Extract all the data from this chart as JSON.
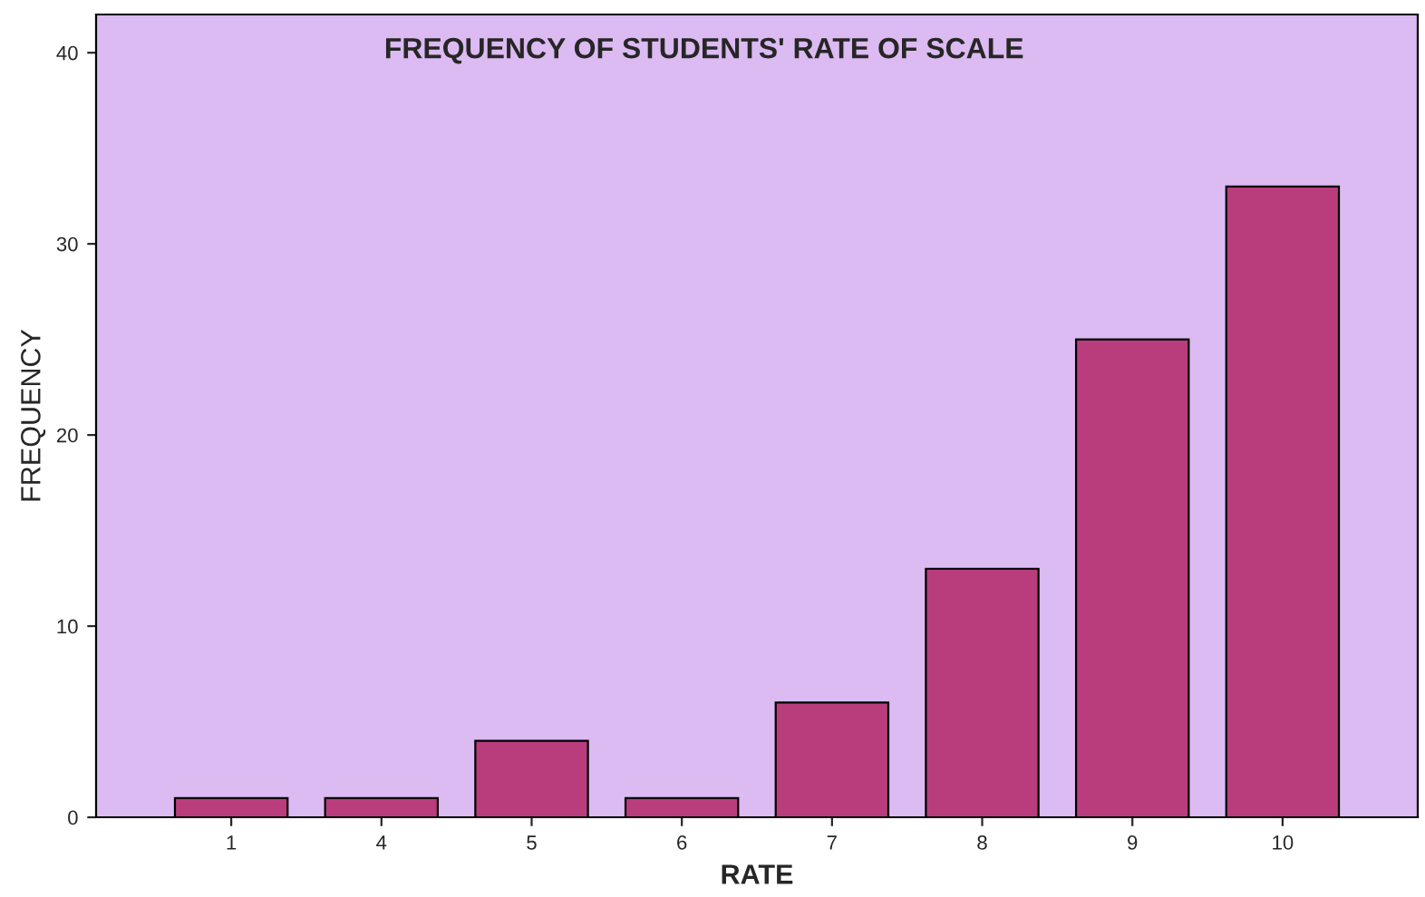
{
  "chart_data": {
    "type": "bar",
    "title": "FREQUENCY OF STUDENTS' RATE OF SCALE",
    "xlabel": "RATE",
    "ylabel": "FREQUENCY",
    "categories": [
      "1",
      "4",
      "5",
      "6",
      "7",
      "8",
      "9",
      "10"
    ],
    "values": [
      1,
      1,
      4,
      1,
      6,
      13,
      25,
      33
    ],
    "color": "#b93d7d",
    "ylim": [
      0,
      42
    ],
    "yticks": [
      0,
      10,
      20,
      30,
      40
    ],
    "grid": false
  }
}
